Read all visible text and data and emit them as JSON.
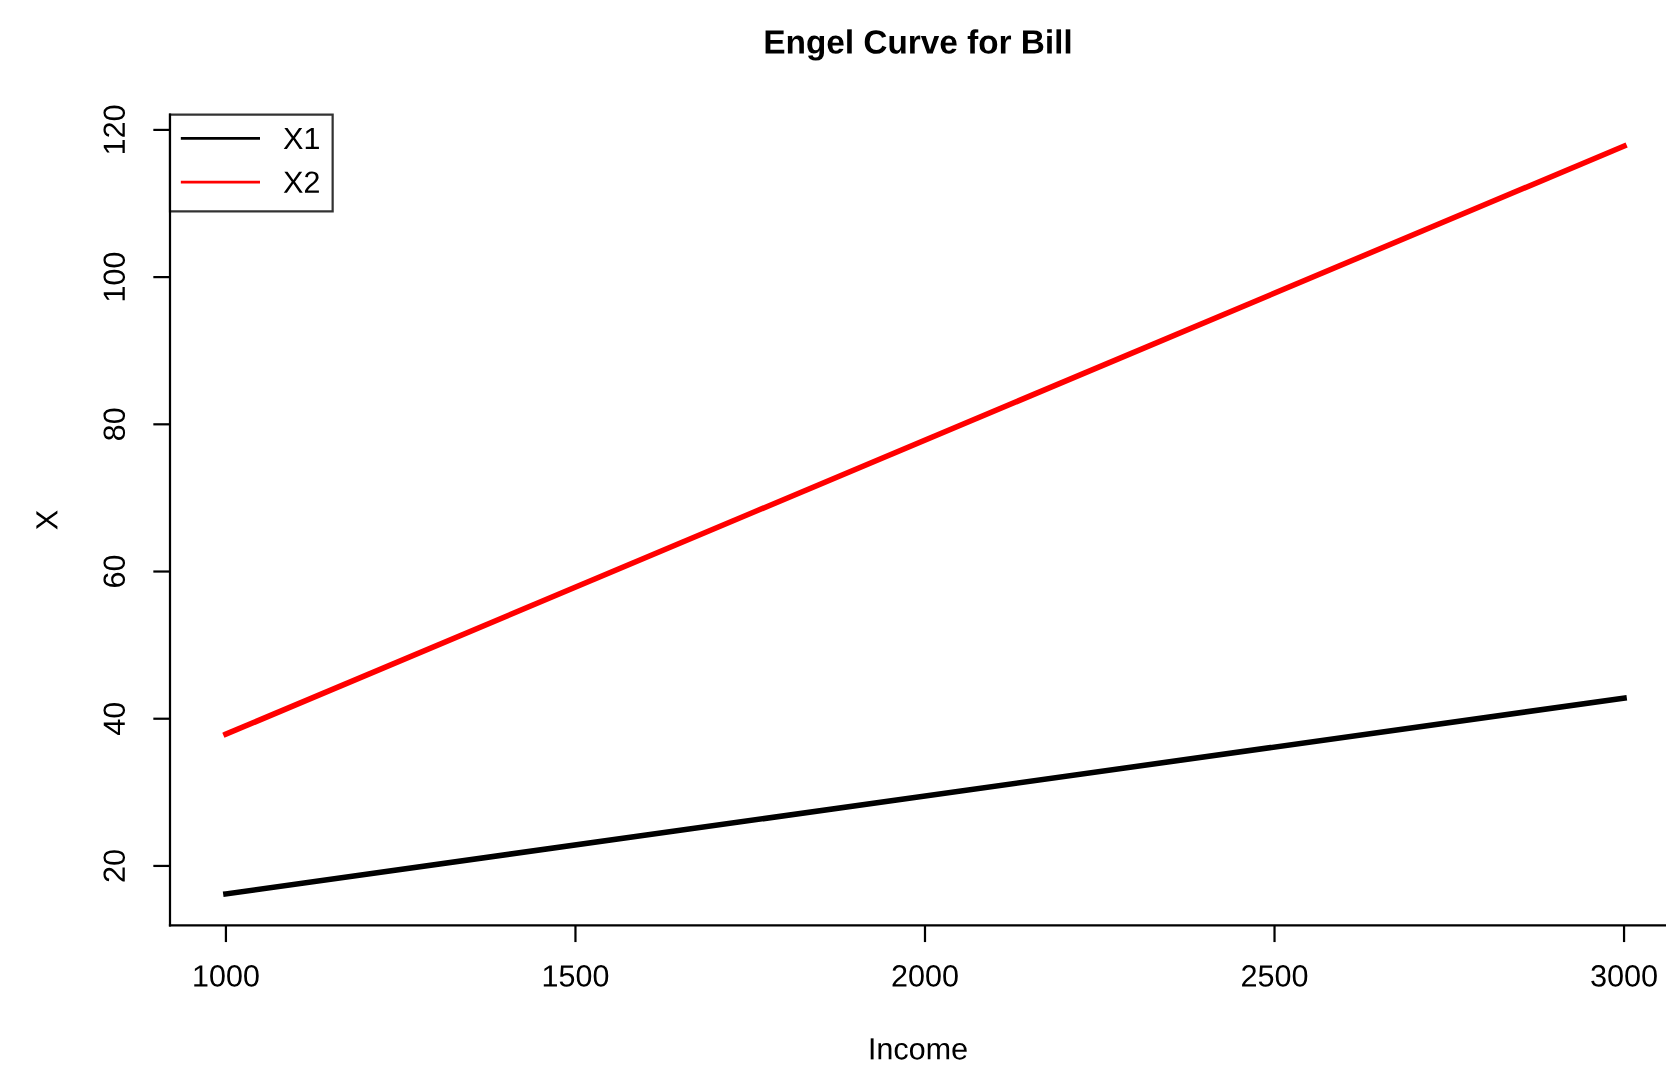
{
  "chart_data": {
    "type": "line",
    "title": "Engel Curve for Bill",
    "xlabel": "Income",
    "ylabel": "X",
    "x": [
      1000,
      3000
    ],
    "series": [
      {
        "name": "X1",
        "color": "#000000",
        "values": [
          16.2,
          42.8
        ]
      },
      {
        "name": "X2",
        "color": "#ff0000",
        "values": [
          37.9,
          117.8
        ]
      }
    ],
    "xlim": [
      920,
      3060
    ],
    "ylim": [
      11.92,
      122.08
    ],
    "xticks": [
      1000,
      1500,
      2000,
      2500,
      3000
    ],
    "yticks": [
      20,
      40,
      60,
      80,
      100,
      120
    ],
    "grid": false,
    "legend": "top left",
    "marker": "none",
    "line_style": "solid"
  }
}
